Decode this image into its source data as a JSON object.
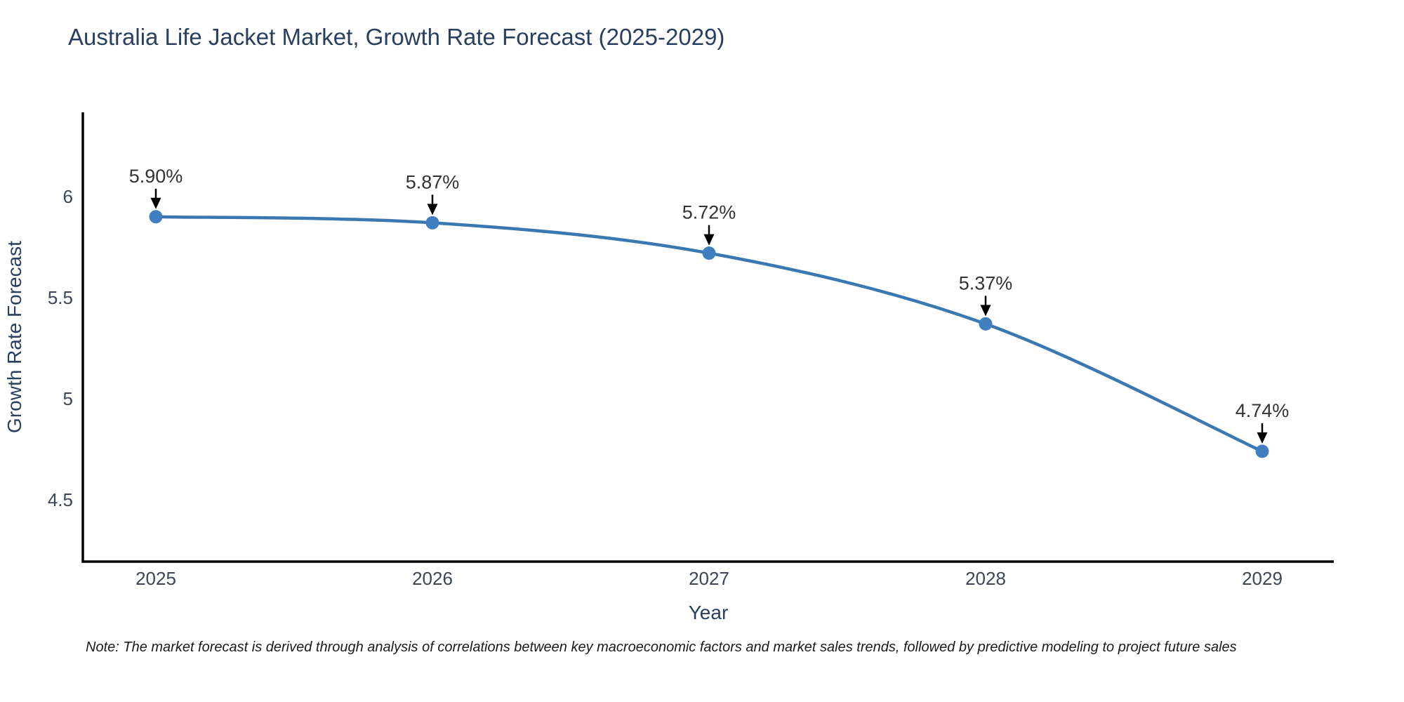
{
  "title": "Australia Life Jacket Market, Growth Rate Forecast (2025-2029)",
  "note": "Note: The market forecast is derived through analysis of correlations between key macroeconomic factors and market sales trends, followed by predictive modeling to project future sales",
  "chart_data": {
    "type": "line",
    "title": "Australia Life Jacket Market, Growth Rate Forecast (2025-2029)",
    "x": [
      2025,
      2026,
      2027,
      2028,
      2029
    ],
    "xtick_labels": [
      "2025",
      "2026",
      "2027",
      "2028",
      "2029"
    ],
    "values": [
      5.9,
      5.87,
      5.72,
      5.37,
      4.74
    ],
    "point_labels": [
      "5.90%",
      "5.87%",
      "5.72%",
      "5.37%",
      "4.74%"
    ],
    "xlabel": "Year",
    "ylabel": "Growth Rate Forecast",
    "yticks": [
      6,
      5.5,
      5,
      4.5
    ],
    "ytick_labels": [
      "6",
      "5.5",
      "5",
      "4.5"
    ],
    "ylim": [
      4.19,
      6.42
    ],
    "grid": false,
    "legend": "none",
    "marker_style": "circle",
    "annotation_arrow": "down",
    "colors": {
      "line": "#3a78b2",
      "marker": "#3f7fbf",
      "axis": "#000000",
      "title": "#2a3f5f",
      "tick_label": "#3d4657",
      "annotation_text": "#333333",
      "annotation_arrow": "#000000",
      "background": "#ffffff"
    }
  }
}
